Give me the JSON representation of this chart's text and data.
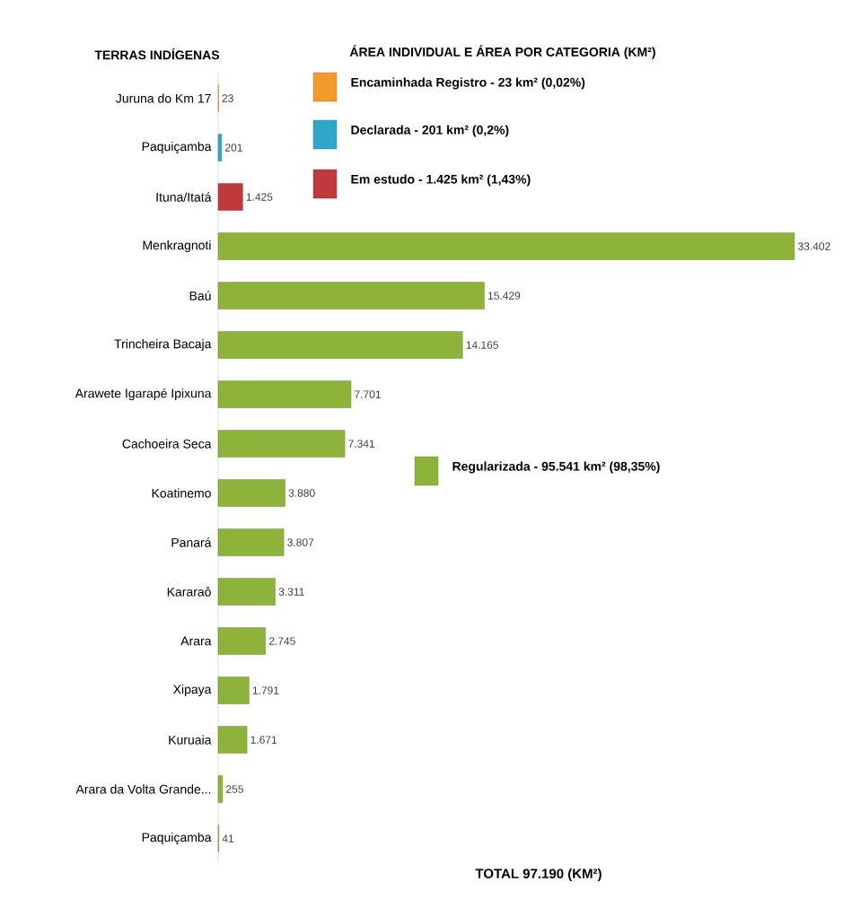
{
  "chart_data": {
    "type": "bar",
    "orientation": "horizontal",
    "title": "ÁREA INDIVIDUAL E ÁREA POR CATEGORIA (KM²)",
    "ylabel": "TERRAS INDÍGENAS",
    "categories": [
      "Juruna do Km 17",
      "Paquiçamba",
      "Ituna/Itatá",
      "Menkragnoti",
      "Baú",
      "Trincheira Bacaja",
      "Arawete Igarapé Ipixuna",
      "Cachoeira Seca",
      "Koatinemo",
      "Panará",
      "Kararaô",
      "Arara",
      "Xipaya",
      "Kuruaia",
      "Arara da Volta Grande...",
      "Paquiçamba"
    ],
    "series": [
      {
        "name": "Encaminhada Registro -  23 km² (0,02%)",
        "color": "#f39a2b",
        "values": [
          23,
          null,
          null,
          null,
          null,
          null,
          null,
          null,
          null,
          null,
          null,
          null,
          null,
          null,
          null,
          null
        ],
        "value_labels": [
          "23",
          null,
          null,
          null,
          null,
          null,
          null,
          null,
          null,
          null,
          null,
          null,
          null,
          null,
          null,
          null
        ]
      },
      {
        "name": "Declarada -  201 km² (0,2%)",
        "color": "#2ea7c9",
        "values": [
          null,
          201,
          null,
          null,
          null,
          null,
          null,
          null,
          null,
          null,
          null,
          null,
          null,
          null,
          null,
          null
        ],
        "value_labels": [
          null,
          "201",
          null,
          null,
          null,
          null,
          null,
          null,
          null,
          null,
          null,
          null,
          null,
          null,
          null,
          null
        ]
      },
      {
        "name": "Em estudo -  1.425 km² (1,43%)",
        "color": "#c0393b",
        "values": [
          null,
          null,
          1425,
          null,
          null,
          null,
          null,
          null,
          null,
          null,
          null,
          null,
          null,
          null,
          null,
          null
        ],
        "value_labels": [
          null,
          null,
          "1.425",
          null,
          null,
          null,
          null,
          null,
          null,
          null,
          null,
          null,
          null,
          null,
          null,
          null
        ]
      },
      {
        "name": "Regularizada -  95.541 km² (98,35%)",
        "color": "#8db33a",
        "values": [
          null,
          null,
          null,
          33402,
          15429,
          14165,
          7701,
          7341,
          3880,
          3807,
          3311,
          2745,
          1791,
          1671,
          255,
          41
        ],
        "value_labels": [
          null,
          null,
          null,
          "33.402",
          "15.429",
          "14.165",
          "7.701",
          "7.341",
          "3.880",
          "3.807",
          "3.311",
          "2.745",
          "1.791",
          "1.671",
          "255",
          "41"
        ]
      }
    ],
    "legend": "top right",
    "annotations": [
      "TOTAL 97.190 (KM²)"
    ]
  }
}
